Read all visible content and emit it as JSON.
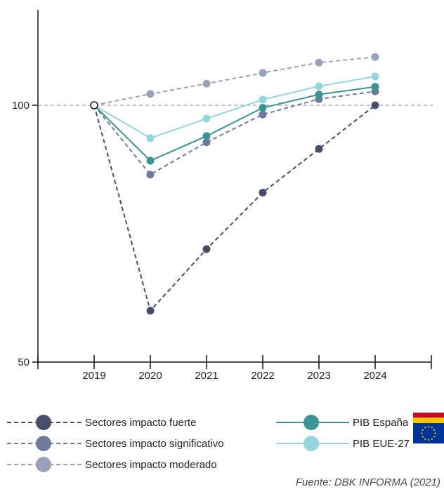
{
  "chart_data": {
    "type": "line",
    "categories": [
      "2019",
      "2020",
      "2021",
      "2022",
      "2023",
      "2024"
    ],
    "y_ticks": [
      "50",
      "100"
    ],
    "ylim": [
      50,
      118
    ],
    "reference_value": 100,
    "series": [
      {
        "key": "fuerte",
        "name": "Sectores impacto fuerte",
        "color": "#474e6a",
        "style": "dashed",
        "values": [
          100,
          60,
          72,
          83,
          91.5,
          100
        ]
      },
      {
        "key": "significativo",
        "name": "Sectores impacto significativo",
        "color": "#6e7a9e",
        "style": "dashed",
        "values": [
          100,
          86.5,
          92.8,
          98.2,
          101.2,
          102.7
        ]
      },
      {
        "key": "moderado",
        "name": "Sectores impacto moderado",
        "color": "#9aa1ba",
        "style": "dashed",
        "values": [
          100,
          102.2,
          104.2,
          106.3,
          108.3,
          109.4
        ]
      },
      {
        "key": "pib_es",
        "name": "PIB España",
        "color": "#3a9494",
        "style": "solid",
        "values": [
          100,
          89.2,
          94,
          99.5,
          102.1,
          103.6
        ]
      },
      {
        "key": "pib_eu",
        "name": "PIB EUE-27",
        "color": "#95d5df",
        "style": "solid",
        "values": [
          100,
          93.6,
          97.4,
          101.1,
          103.7,
          105.6
        ]
      }
    ],
    "legend_position": "bottom",
    "grid": false,
    "source": "Fuente: DBK INFORMA (2021)"
  }
}
